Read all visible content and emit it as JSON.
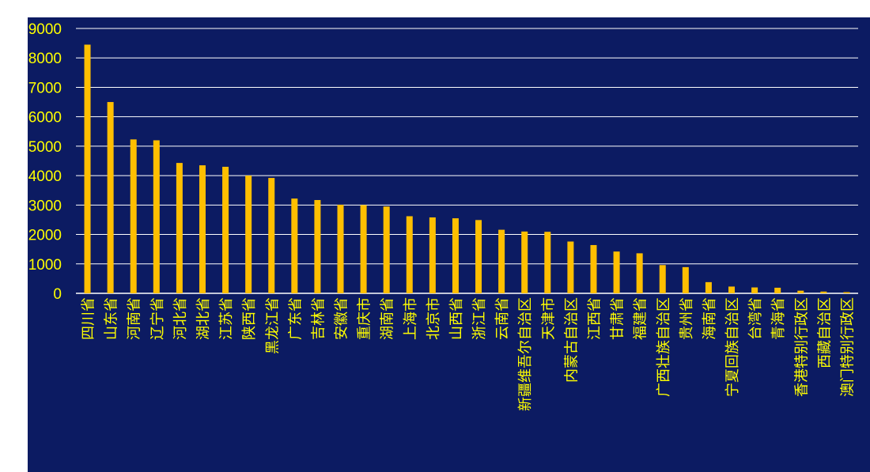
{
  "colors": {
    "page_background": "#ffffff",
    "plot_background": "#0c1b62",
    "bar": "#ffbf00",
    "gridline": "#ffffff",
    "tick_label": "#ffff00"
  },
  "chart_data": {
    "type": "bar",
    "title": "",
    "xlabel": "",
    "ylabel": "",
    "ylim": [
      0,
      9000
    ],
    "y_ticks": [
      0,
      1000,
      2000,
      3000,
      4000,
      5000,
      6000,
      7000,
      8000,
      9000
    ],
    "grid": true,
    "legend": "none",
    "categories": [
      "四川省",
      "山东省",
      "河南省",
      "辽宁省",
      "河北省",
      "湖北省",
      "江苏省",
      "陕西省",
      "黑龙江省",
      "广东省",
      "吉林省",
      "安徽省",
      "重庆市",
      "湖南省",
      "上海市",
      "北京市",
      "山西省",
      "浙江省",
      "云南省",
      "新疆维吾尔自治区",
      "天津市",
      "内蒙古自治区",
      "江西省",
      "甘肃省",
      "福建省",
      "广西壮族自治区",
      "贵州省",
      "海南省",
      "宁夏回族自治区",
      "台湾省",
      "青海省",
      "香港特别行政区",
      "西藏自治区",
      "澳门特别行政区"
    ],
    "values": [
      8450,
      6500,
      5230,
      5200,
      4430,
      4350,
      4300,
      4000,
      3920,
      3220,
      3170,
      3010,
      3000,
      2950,
      2620,
      2580,
      2550,
      2490,
      2160,
      2100,
      2090,
      1760,
      1640,
      1420,
      1360,
      960,
      890,
      380,
      230,
      200,
      190,
      90,
      60,
      40
    ]
  }
}
